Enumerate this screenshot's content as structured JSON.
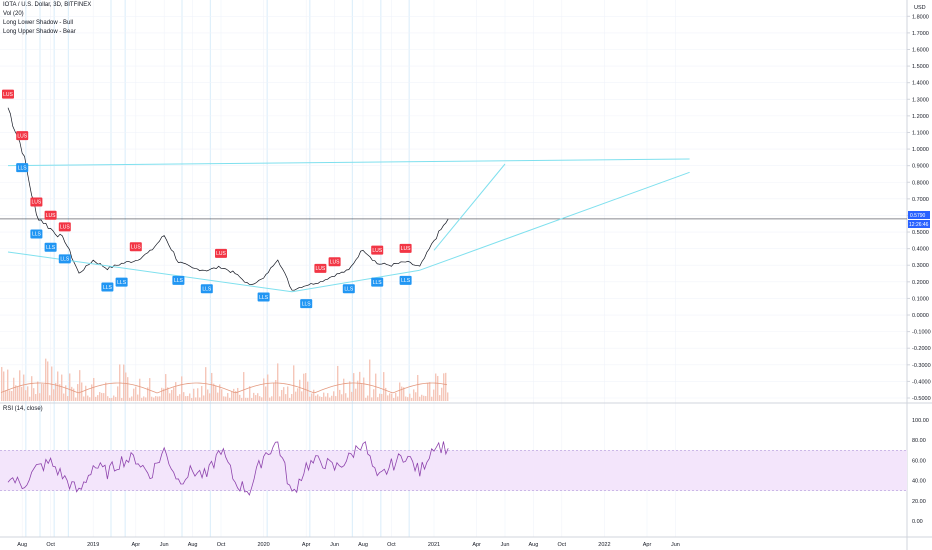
{
  "header": {
    "symbol_line": "IOTA / U.S. Dollar, 3D, BITFINEX",
    "indicators": [
      "Vol (20)",
      "Long Lower Shadow - Bull",
      "Long Upper Shadow - Bear"
    ],
    "currency": "USD"
  },
  "rsi_panel": {
    "label": "RSI (14, close)"
  },
  "price_labels": {
    "last_price": "0.5790",
    "countdown": "12:26:46"
  },
  "colors": {
    "bull_badge": "#2196f3",
    "bear_badge": "#f23645",
    "price_line": "#131722",
    "volume": "#f5c6b9",
    "volume_ma": "#e49a80",
    "trendline": "#7fe0ee",
    "rsi_line": "#8e44ad",
    "rsi_band": "#f3e5fb",
    "vertical_highlight": "#bfe1f7"
  },
  "chart_data": [
    {
      "type": "line",
      "title": "IOTA / U.S. Dollar, 3D, BITFINEX",
      "x_ticks": [
        "Aug",
        "Oct",
        "2019",
        "Apr",
        "Jun",
        "Aug",
        "Oct",
        "2020",
        "Apr",
        "Jun",
        "Aug",
        "Oct",
        "2021",
        "Apr",
        "Jun",
        "Aug",
        "Oct",
        "2022",
        "Apr",
        "Jun"
      ],
      "y_ticks": [
        "1.8000",
        "1.7000",
        "1.6000",
        "1.5000",
        "1.4000",
        "1.3000",
        "1.2000",
        "1.1000",
        "1.0000",
        "0.9000",
        "0.8000",
        "0.7000",
        "0.6000",
        "0.5000",
        "0.4000",
        "0.3000",
        "0.2000",
        "0.1000",
        "0.0000",
        "-0.1000",
        "-0.2000",
        "-0.3000",
        "-0.4000",
        "-0.5000"
      ],
      "ylim": [
        -0.5,
        1.85
      ],
      "series": [
        {
          "values_by_month": [
            {
              "x": "2018-07",
              "y": 1.25
            },
            {
              "x": "2018-08",
              "y": 1.0
            },
            {
              "x": "2018-09",
              "y": 0.6
            },
            {
              "x": "2018-10",
              "y": 0.52
            },
            {
              "x": "2018-11",
              "y": 0.45
            },
            {
              "x": "2018-12",
              "y": 0.25
            },
            {
              "x": "2019-01",
              "y": 0.33
            },
            {
              "x": "2019-02",
              "y": 0.28
            },
            {
              "x": "2019-03",
              "y": 0.31
            },
            {
              "x": "2019-04",
              "y": 0.33
            },
            {
              "x": "2019-05",
              "y": 0.38
            },
            {
              "x": "2019-06",
              "y": 0.48
            },
            {
              "x": "2019-07",
              "y": 0.32
            },
            {
              "x": "2019-08",
              "y": 0.28
            },
            {
              "x": "2019-09",
              "y": 0.27
            },
            {
              "x": "2019-10",
              "y": 0.29
            },
            {
              "x": "2019-11",
              "y": 0.25
            },
            {
              "x": "2019-12",
              "y": 0.18
            },
            {
              "x": "2020-01",
              "y": 0.22
            },
            {
              "x": "2020-02",
              "y": 0.34
            },
            {
              "x": "2020-03",
              "y": 0.15
            },
            {
              "x": "2020-04",
              "y": 0.18
            },
            {
              "x": "2020-05",
              "y": 0.2
            },
            {
              "x": "2020-06",
              "y": 0.24
            },
            {
              "x": "2020-07",
              "y": 0.27
            },
            {
              "x": "2020-08",
              "y": 0.4
            },
            {
              "x": "2020-09",
              "y": 0.31
            },
            {
              "x": "2020-10",
              "y": 0.3
            },
            {
              "x": "2020-11",
              "y": 0.32
            },
            {
              "x": "2020-12",
              "y": 0.29
            },
            {
              "x": "2021-01",
              "y": 0.45
            },
            {
              "x": "2021-02",
              "y": 0.579
            }
          ]
        }
      ],
      "markers": [
        {
          "kind": "bear",
          "label": "LUS",
          "x": "2018-07"
        },
        {
          "kind": "bear",
          "label": "LUS",
          "x": "2018-08"
        },
        {
          "kind": "bear",
          "label": "LUS",
          "x": "2018-09"
        },
        {
          "kind": "bear",
          "label": "LUS",
          "x": "2018-10"
        },
        {
          "kind": "bear",
          "label": "LUS",
          "x": "2018-11"
        },
        {
          "kind": "bull",
          "label": "LLS",
          "x": "2018-08"
        },
        {
          "kind": "bull",
          "label": "LLS",
          "x": "2018-09"
        },
        {
          "kind": "bull",
          "label": "LLS",
          "x": "2018-10"
        },
        {
          "kind": "bull",
          "label": "LLS",
          "x": "2018-11"
        },
        {
          "kind": "bull",
          "label": "LLS",
          "x": "2019-02"
        },
        {
          "kind": "bull",
          "label": "LLS",
          "x": "2019-03"
        },
        {
          "kind": "bull",
          "label": "LLS",
          "x": "2019-07"
        },
        {
          "kind": "bull",
          "label": "LLS",
          "x": "2019-09"
        },
        {
          "kind": "bull",
          "label": "LLS",
          "x": "2020-01"
        },
        {
          "kind": "bull",
          "label": "LLS",
          "x": "2020-04"
        },
        {
          "kind": "bull",
          "label": "LLS",
          "x": "2020-07"
        },
        {
          "kind": "bull",
          "label": "LLS",
          "x": "2020-09"
        },
        {
          "kind": "bull",
          "label": "LLS",
          "x": "2020-11"
        },
        {
          "kind": "bear",
          "label": "LUS",
          "x": "2019-04"
        },
        {
          "kind": "bear",
          "label": "LUS",
          "x": "2019-10"
        },
        {
          "kind": "bear",
          "label": "LUS",
          "x": "2020-05"
        },
        {
          "kind": "bear",
          "label": "LUS",
          "x": "2020-06"
        },
        {
          "kind": "bear",
          "label": "LUS",
          "x": "2020-09"
        },
        {
          "kind": "bear",
          "label": "LUS",
          "x": "2020-11"
        }
      ],
      "trendlines": [
        {
          "from": {
            "x": "2018-07",
            "y": 0.9
          },
          "to": {
            "x": "2022-07",
            "y": 0.94
          }
        },
        {
          "from": {
            "x": "2021-01",
            "y": 0.39
          },
          "to": {
            "x": "2021-06",
            "y": 0.91
          }
        },
        {
          "from": {
            "x": "2020-12",
            "y": 0.27
          },
          "to": {
            "x": "2022-07",
            "y": 0.86
          }
        },
        {
          "from": {
            "x": "2018-07",
            "y": 0.38
          },
          "to": {
            "x": "2020-03",
            "y": 0.14
          }
        },
        {
          "from": {
            "x": "2020-03",
            "y": 0.14
          },
          "to": {
            "x": "2020-12",
            "y": 0.27
          }
        }
      ],
      "horizontal_levels": [
        0.579
      ],
      "volume_ma_note": "Vol (20)"
    },
    {
      "type": "line",
      "title": "RSI (14, close)",
      "y_ticks": [
        "100.00",
        "80.00",
        "60.00",
        "40.00",
        "20.00",
        "0.00"
      ],
      "ylim": [
        0,
        100
      ],
      "band": [
        30,
        70
      ],
      "series": [
        {
          "values_by_month": [
            {
              "x": "2018-07",
              "y": 45
            },
            {
              "x": "2018-08",
              "y": 35
            },
            {
              "x": "2018-09",
              "y": 52
            },
            {
              "x": "2018-10",
              "y": 58
            },
            {
              "x": "2018-11",
              "y": 42
            },
            {
              "x": "2018-12",
              "y": 28
            },
            {
              "x": "2019-01",
              "y": 55
            },
            {
              "x": "2019-02",
              "y": 48
            },
            {
              "x": "2019-03",
              "y": 60
            },
            {
              "x": "2019-04",
              "y": 62
            },
            {
              "x": "2019-05",
              "y": 45
            },
            {
              "x": "2019-06",
              "y": 70
            },
            {
              "x": "2019-07",
              "y": 40
            },
            {
              "x": "2019-08",
              "y": 50
            },
            {
              "x": "2019-09",
              "y": 44
            },
            {
              "x": "2019-10",
              "y": 72
            },
            {
              "x": "2019-11",
              "y": 38
            },
            {
              "x": "2019-12",
              "y": 30
            },
            {
              "x": "2020-01",
              "y": 65
            },
            {
              "x": "2020-02",
              "y": 78
            },
            {
              "x": "2020-03",
              "y": 25
            },
            {
              "x": "2020-04",
              "y": 55
            },
            {
              "x": "2020-05",
              "y": 60
            },
            {
              "x": "2020-06",
              "y": 52
            },
            {
              "x": "2020-07",
              "y": 62
            },
            {
              "x": "2020-08",
              "y": 80
            },
            {
              "x": "2020-09",
              "y": 40
            },
            {
              "x": "2020-10",
              "y": 55
            },
            {
              "x": "2020-11",
              "y": 66
            },
            {
              "x": "2020-12",
              "y": 48
            },
            {
              "x": "2021-01",
              "y": 76
            },
            {
              "x": "2021-02",
              "y": 72
            }
          ]
        }
      ]
    }
  ]
}
